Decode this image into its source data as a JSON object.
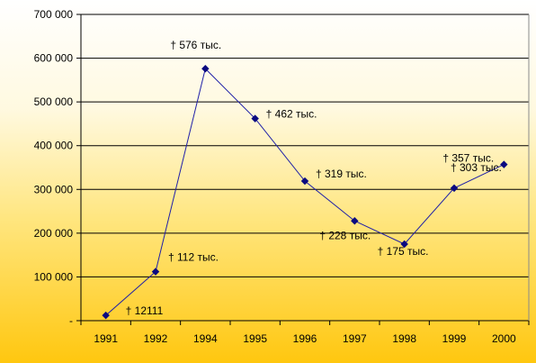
{
  "chart_data": {
    "type": "line",
    "title": "",
    "xlabel": "",
    "ylabel": "",
    "categories": [
      "1991",
      "1992",
      "1994",
      "1995",
      "1996",
      "1997",
      "1998",
      "1999",
      "2000"
    ],
    "series": [
      {
        "values": [
          12111,
          112000,
          576000,
          462000,
          319000,
          228000,
          175000,
          303000,
          357000
        ],
        "data_labels": [
          "† 12111",
          "† 112 тыс.",
          "† 576 тыс.",
          "† 462 тыс.",
          "† 319 тыс.",
          "† 228 тыс.",
          "† 175 тыс.",
          "† 303 тыс.",
          "† 357 тыс."
        ],
        "color": "#1f1fa8"
      }
    ],
    "ylim": [
      0,
      700000
    ],
    "y_ticks": [
      {
        "value": 0,
        "label": "-"
      },
      {
        "value": 100000,
        "label": "100 000"
      },
      {
        "value": 200000,
        "label": "200 000"
      },
      {
        "value": 300000,
        "label": "300 000"
      },
      {
        "value": 400000,
        "label": "400 000"
      },
      {
        "value": 500000,
        "label": "500 000"
      },
      {
        "value": 600000,
        "label": "600 000"
      },
      {
        "value": 700000,
        "label": "700 000"
      }
    ],
    "grid": true,
    "legend": "none"
  }
}
